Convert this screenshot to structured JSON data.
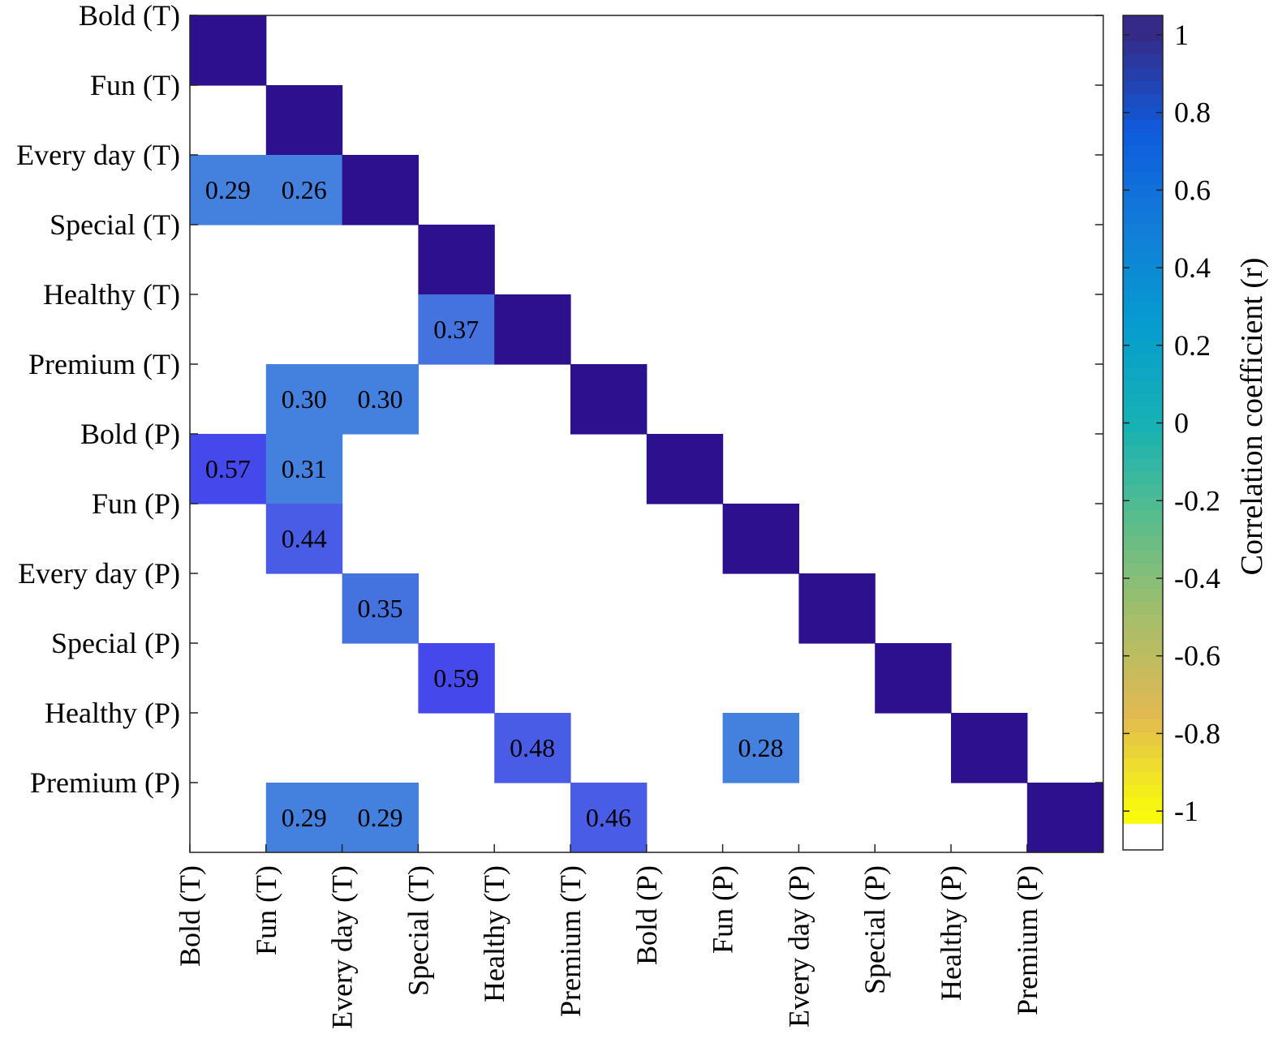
{
  "chart_data": {
    "type": "heatmap",
    "title": "",
    "xlabel": "",
    "ylabel": "",
    "categories": [
      "Bold (T)",
      "Fun (T)",
      "Every day (T)",
      "Special (T)",
      "Healthy (T)",
      "Premium (T)",
      "Bold (P)",
      "Fun (P)",
      "Every day (P)",
      "Special (P)",
      "Healthy (P)",
      "Premium (P)"
    ],
    "cells": [
      {
        "row": 0,
        "col": 0,
        "value": 1,
        "label": ""
      },
      {
        "row": 1,
        "col": 1,
        "value": 1,
        "label": ""
      },
      {
        "row": 2,
        "col": 0,
        "value": 0.29,
        "label": "0.29"
      },
      {
        "row": 2,
        "col": 1,
        "value": 0.26,
        "label": "0.26"
      },
      {
        "row": 2,
        "col": 2,
        "value": 1,
        "label": ""
      },
      {
        "row": 3,
        "col": 3,
        "value": 1,
        "label": ""
      },
      {
        "row": 4,
        "col": 3,
        "value": 0.37,
        "label": "0.37"
      },
      {
        "row": 4,
        "col": 4,
        "value": 1,
        "label": ""
      },
      {
        "row": 5,
        "col": 1,
        "value": 0.3,
        "label": "0.30"
      },
      {
        "row": 5,
        "col": 2,
        "value": 0.3,
        "label": "0.30"
      },
      {
        "row": 5,
        "col": 5,
        "value": 1,
        "label": ""
      },
      {
        "row": 6,
        "col": 0,
        "value": 0.57,
        "label": "0.57"
      },
      {
        "row": 6,
        "col": 1,
        "value": 0.31,
        "label": "0.31"
      },
      {
        "row": 6,
        "col": 6,
        "value": 1,
        "label": ""
      },
      {
        "row": 7,
        "col": 1,
        "value": 0.44,
        "label": "0.44"
      },
      {
        "row": 7,
        "col": 7,
        "value": 1,
        "label": ""
      },
      {
        "row": 8,
        "col": 2,
        "value": 0.35,
        "label": "0.35"
      },
      {
        "row": 8,
        "col": 8,
        "value": 1,
        "label": ""
      },
      {
        "row": 9,
        "col": 3,
        "value": 0.59,
        "label": "0.59"
      },
      {
        "row": 9,
        "col": 9,
        "value": 1,
        "label": ""
      },
      {
        "row": 10,
        "col": 4,
        "value": 0.48,
        "label": "0.48"
      },
      {
        "row": 10,
        "col": 7,
        "value": 0.28,
        "label": "0.28"
      },
      {
        "row": 10,
        "col": 10,
        "value": 1,
        "label": ""
      },
      {
        "row": 11,
        "col": 1,
        "value": 0.29,
        "label": "0.29"
      },
      {
        "row": 11,
        "col": 2,
        "value": 0.29,
        "label": "0.29"
      },
      {
        "row": 11,
        "col": 5,
        "value": 0.46,
        "label": "0.46"
      },
      {
        "row": 11,
        "col": 11,
        "value": 1,
        "label": ""
      }
    ],
    "colorbar": {
      "label": "Correlation coefficient (r)",
      "range": [
        -1.1,
        1.05
      ],
      "ticks": [
        1,
        0.8,
        0.6,
        0.4,
        0.2,
        0,
        -0.2,
        -0.4,
        -0.6,
        -0.8,
        -1
      ],
      "tick_labels": [
        "1",
        "0.8",
        "0.6",
        "0.4",
        "0.2",
        "0",
        "-0.2",
        "-0.4",
        "-0.6",
        "-0.8",
        "-1"
      ],
      "colormap": "parula"
    },
    "grid": false,
    "legend": "right"
  }
}
